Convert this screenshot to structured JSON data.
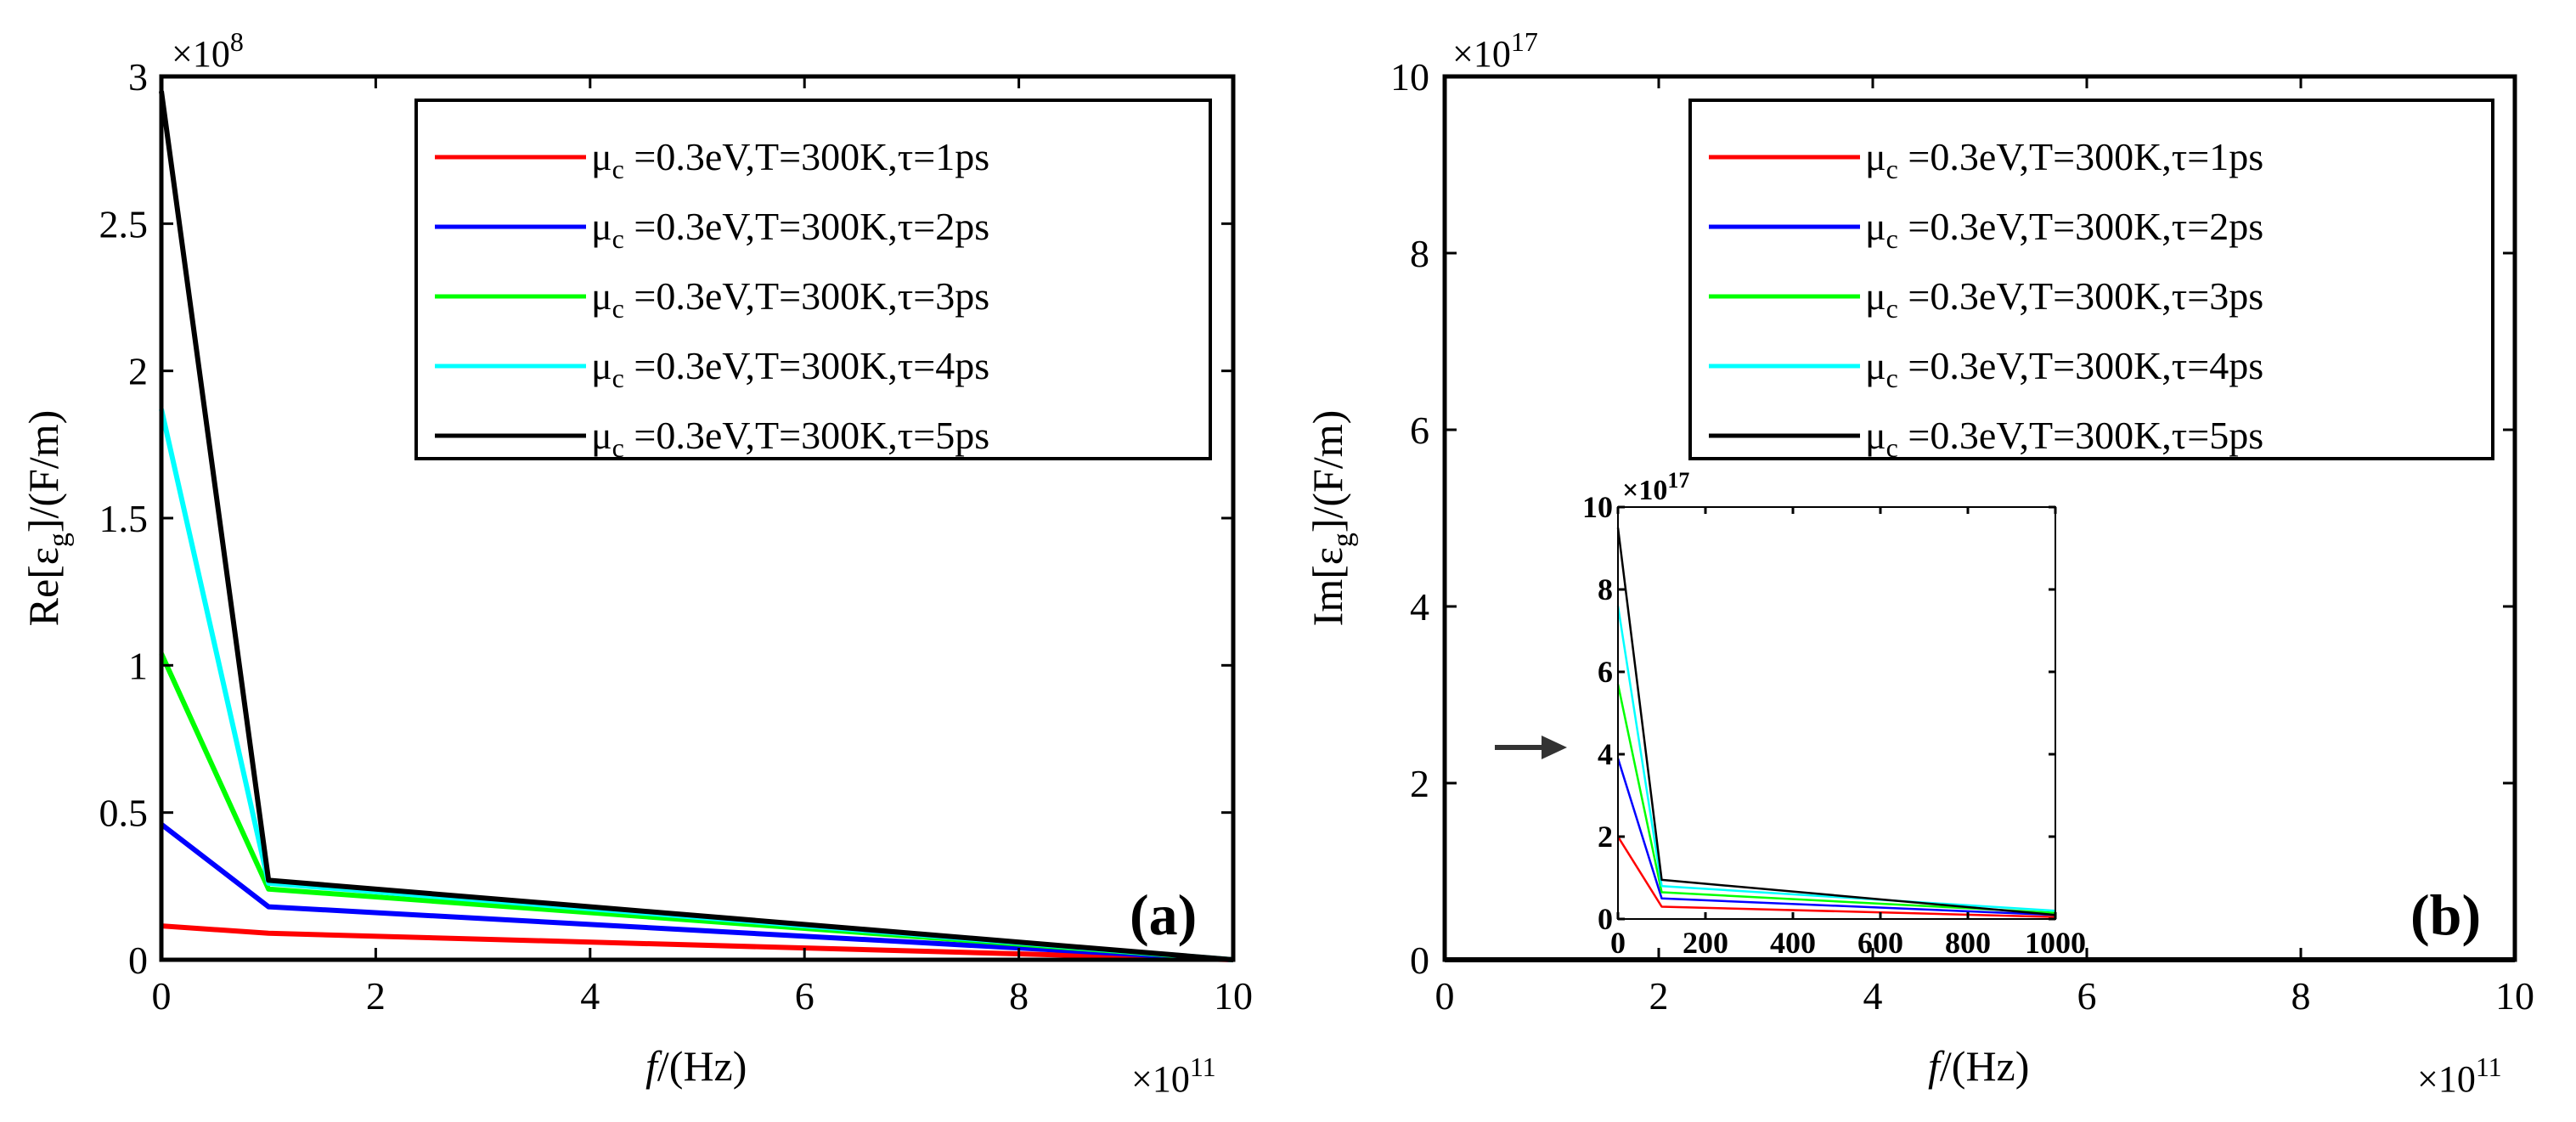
{
  "figure": {
    "panel_a_label": "a",
    "panel_b_label": "b",
    "x_label_italic": "f",
    "x_label_rest": "/(Hz)",
    "y_label_a": "Re[εg]/(F/m)",
    "y_label_a_main": "Re[ε",
    "y_label_a_sub": "g",
    "y_label_a_end": "]/(F/m)",
    "y_label_b": "Im[εg]/(F/m)",
    "y_label_b_main": "Im[ε",
    "y_label_b_sub": "g",
    "y_label_b_end": "]/(F/m)",
    "x_multiplier": "×10",
    "x_multiplier_exp": "11",
    "y_multiplier_a": "×10",
    "y_multiplier_a_exp": "8",
    "y_multiplier_b": "×10",
    "y_multiplier_b_exp": "17",
    "inset_y_multiplier": "×10",
    "inset_y_multiplier_exp": "17"
  },
  "legend": [
    {
      "mu": "μ",
      "mu_sub": "c",
      "rest": " =0.3eV,T=300K,τ=1ps",
      "color": "#ff0000"
    },
    {
      "mu": "μ",
      "mu_sub": "c",
      "rest": " =0.3eV,T=300K,τ=2ps",
      "color": "#0000ff"
    },
    {
      "mu": "μ",
      "mu_sub": "c",
      "rest": " =0.3eV,T=300K,τ=3ps",
      "color": "#00ff00"
    },
    {
      "mu": "μ",
      "mu_sub": "c",
      "rest": " =0.3eV,T=300K,τ=4ps",
      "color": "#00ffff"
    },
    {
      "mu": "μ",
      "mu_sub": "c",
      "rest": " =0.3eV,T=300K,τ=5ps",
      "color": "#000000"
    }
  ],
  "chart_data": [
    {
      "type": "line",
      "panel": "a",
      "title": "",
      "xlabel": "f/(Hz)",
      "ylabel": "Re[εg]/(F/m)",
      "x_scale": "×10^11",
      "y_scale": "×10^8",
      "xlim": [
        0,
        10
      ],
      "ylim": [
        0,
        3
      ],
      "x_ticks": [
        0,
        2,
        4,
        6,
        8,
        10
      ],
      "y_ticks": [
        0,
        0.5,
        1,
        1.5,
        2,
        2.5,
        3
      ],
      "x_tick_labels": [
        "0",
        "2",
        "4",
        "6",
        "8",
        "10"
      ],
      "y_tick_labels": [
        "0",
        "0.5",
        "1",
        "1.5",
        "2",
        "2.5",
        "3"
      ],
      "x": [
        0,
        1,
        10
      ],
      "series": [
        {
          "name": "τ=1ps",
          "color": "#ff0000",
          "values": [
            0.115,
            0.09,
            0.0
          ]
        },
        {
          "name": "τ=2ps",
          "color": "#0000ff",
          "values": [
            0.46,
            0.18,
            0.0
          ]
        },
        {
          "name": "τ=3ps",
          "color": "#00ff00",
          "values": [
            1.04,
            0.24,
            0.0
          ]
        },
        {
          "name": "τ=4ps",
          "color": "#00ffff",
          "values": [
            1.87,
            0.26,
            0.0
          ]
        },
        {
          "name": "τ=5ps",
          "color": "#000000",
          "values": [
            2.95,
            0.27,
            0.0
          ]
        }
      ],
      "legend_position": "top-right",
      "grid": false
    },
    {
      "type": "line",
      "panel": "b",
      "title": "",
      "xlabel": "f/(Hz)",
      "ylabel": "Im[εg]/(F/m)",
      "x_scale": "×10^11",
      "y_scale": "×10^17",
      "xlim": [
        0,
        10
      ],
      "ylim": [
        0,
        10
      ],
      "x_ticks": [
        0,
        2,
        4,
        6,
        8,
        10
      ],
      "y_ticks": [
        0,
        2,
        4,
        6,
        8,
        10
      ],
      "x_tick_labels": [
        "0",
        "2",
        "4",
        "6",
        "8",
        "10"
      ],
      "y_tick_labels": [
        "0",
        "2",
        "4",
        "6",
        "8",
        "10"
      ],
      "x": [
        0,
        10
      ],
      "series": [
        {
          "name": "τ=1ps",
          "color": "#ff0000",
          "values": [
            0,
            0
          ]
        },
        {
          "name": "τ=2ps",
          "color": "#0000ff",
          "values": [
            0,
            0
          ]
        },
        {
          "name": "τ=3ps",
          "color": "#00ff00",
          "values": [
            0,
            0
          ]
        },
        {
          "name": "τ=4ps",
          "color": "#00ffff",
          "values": [
            0,
            0
          ]
        },
        {
          "name": "τ=5ps",
          "color": "#000000",
          "values": [
            0,
            0
          ]
        }
      ],
      "legend_position": "top-right",
      "grid": false
    },
    {
      "type": "line",
      "panel": "b-inset",
      "xlabel": "",
      "ylabel": "",
      "y_scale": "×10^17",
      "xlim": [
        0,
        1000
      ],
      "ylim": [
        0,
        10
      ],
      "x_ticks": [
        0,
        200,
        400,
        600,
        800,
        1000
      ],
      "y_ticks": [
        0,
        2,
        4,
        6,
        8,
        10
      ],
      "x_tick_labels": [
        "0",
        "200",
        "400",
        "600",
        "800",
        "1000"
      ],
      "y_tick_labels": [
        "0",
        "2",
        "4",
        "6",
        "8",
        "10"
      ],
      "x": [
        0,
        100,
        1000
      ],
      "series": [
        {
          "name": "τ=1ps",
          "color": "#ff0000",
          "values": [
            2.0,
            0.3,
            0.05
          ]
        },
        {
          "name": "τ=2ps",
          "color": "#0000ff",
          "values": [
            3.9,
            0.5,
            0.1
          ]
        },
        {
          "name": "τ=3ps",
          "color": "#00ff00",
          "values": [
            5.7,
            0.65,
            0.15
          ]
        },
        {
          "name": "τ=4ps",
          "color": "#00ffff",
          "values": [
            7.6,
            0.8,
            0.2
          ]
        },
        {
          "name": "τ=5ps",
          "color": "#000000",
          "values": [
            9.5,
            0.95,
            0.1
          ]
        }
      ]
    }
  ]
}
